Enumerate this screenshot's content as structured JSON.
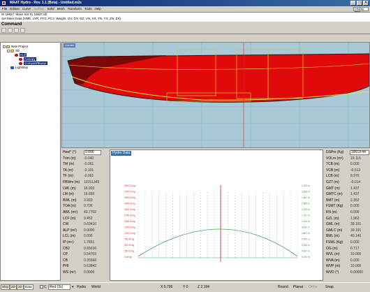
{
  "window": {
    "title": "MAAT Hydro - Rev. 1.1 (Beta) - Untitled.m2s"
  },
  "menu": {
    "items": [
      "File",
      "Edition",
      "Curve",
      "Surface",
      "Solid",
      "Mesh",
      "Transform",
      "Tools",
      "Help"
    ],
    "toolbar_dropdown": "Display Item"
  },
  "command_history": [
    "W 19827: Mass Set To 19827.80",
    "Set Mass Data (HME, LYR, FTG, PC2, Weight, GV, GY, GZ, VN, XX, YN, YX, ZN, ZX)"
  ],
  "command_label": "Command",
  "tree": {
    "root": "New Project",
    "child": "3D",
    "selected_items": [
      "Hull",
      "Canopy",
      "Compart/Bluepr"
    ],
    "lightship": "Lightship"
  },
  "viewport": {
    "label": "Volume"
  },
  "params": {
    "heel": {
      "label": "Heel° (°)",
      "value": "0.000"
    },
    "rows": [
      {
        "label": "Trim (m)",
        "value": "-0.040"
      },
      {
        "label": "TM (m)",
        "value": "-0.061"
      },
      {
        "label": "TA (m)",
        "value": "-0.101"
      },
      {
        "label": "TF (m)",
        "value": "-0.061"
      },
      {
        "label": "FBWm (m)",
        "value": "10151349"
      },
      {
        "label": "LWL (m)",
        "value": "16.933"
      },
      {
        "label": "LM (m)",
        "value": "16.693"
      },
      {
        "label": "BWL (m)",
        "value": "3.933"
      },
      {
        "label": "TOA (m)",
        "value": "0.706"
      },
      {
        "label": "AWL (m²)",
        "value": "43.7702"
      },
      {
        "label": "LCF (m)",
        "value": "9.452"
      },
      {
        "label": "CW",
        "value": "0.69410"
      },
      {
        "label": "ALP (m²)",
        "value": "0.0000"
      },
      {
        "label": "LCL (m)",
        "value": "0.000"
      },
      {
        "label": "IP (m⁴)",
        "value": "1.7851"
      },
      {
        "label": "CB2",
        "value": "0.65016"
      },
      {
        "label": "CP",
        "value": "0.54703"
      },
      {
        "label": "CB",
        "value": "0.35568"
      },
      {
        "label": "PHI",
        "value": "0.63842"
      },
      {
        "label": "WS (m²)",
        "value": "0.0000"
      }
    ]
  },
  "hydro": {
    "label": "Hydro Data",
    "left_scale": [
      "3000.00 kg",
      "2750.00 kg",
      "2500.00 kg",
      "2250.00 kg",
      "2000.00 kg",
      "1750.00 kg",
      "1500.00 kg",
      "1250.00 kg",
      "1000.00 kg",
      "750.00 kg",
      "500.00 kg",
      "250.00 kg",
      "0.00 kg"
    ],
    "right_scale": [
      "2.000 m",
      "1.833 m",
      "1.667 m",
      "1.500 m",
      "1.333 m",
      "1.167 m",
      "1.000 m",
      "0.833 m",
      "0.667 m",
      "0.500 m",
      "0.333 m",
      "0.167 m",
      "0.000 m"
    ],
    "station_count": 24
  },
  "results": {
    "disp": {
      "label": "DSPm (Kg)",
      "value": "19519.44"
    },
    "rows": [
      {
        "label": "VOLm (m³)",
        "value": "19.115"
      },
      {
        "label": "TCB (m)",
        "value": "0.000"
      },
      {
        "label": "VCB (m)",
        "value": "-0.513"
      },
      {
        "label": "LCB (m)",
        "value": "8.976"
      },
      {
        "label": "GZT (m)",
        "value": "-0.014"
      },
      {
        "label": "GMT (m)",
        "value": "1.437"
      },
      {
        "label": "GMTC (m)",
        "value": "1.437"
      },
      {
        "label": "BMT (m)",
        "value": "2.352"
      },
      {
        "label": "FSMT (Kg)",
        "value": "0.000"
      },
      {
        "label": "KN (m)",
        "value": "0.000"
      },
      {
        "label": "GZL (m)",
        "value": "1.962"
      },
      {
        "label": "GML (m)",
        "value": "39.191"
      },
      {
        "label": "GMLC (m)",
        "value": "39.191"
      },
      {
        "label": "BML (m)",
        "value": "40.140"
      },
      {
        "label": "FSML (Kg)",
        "value": "0.000"
      },
      {
        "label": "OG (m)",
        "value": "0.717"
      },
      {
        "label": "WVL (m)",
        "value": "10.000"
      },
      {
        "label": "WVA (m)",
        "value": "0.000"
      },
      {
        "label": "WVP (m)",
        "value": "10.000"
      },
      {
        "label": "WVD (°)",
        "value": "0.00000"
      }
    ]
  },
  "status": {
    "tabs": [
      "Ship",
      "2D",
      "3D",
      "Data"
    ],
    "color_label": "C",
    "color_value": "Red (3s)",
    "mode1": "Hydro",
    "mode2": "World",
    "x": "X 5.796",
    "y": "Y 0",
    "z": "Z 2.194",
    "snaps": [
      "Round",
      "Planar",
      "Ortho",
      "Snap"
    ]
  },
  "colors": {
    "titlebar": "#0a246a",
    "viewport_bg": "#a9c9d6",
    "hull_red": "#e00a0a",
    "grid_green": "#4aa45a",
    "axis_red": "#c00000",
    "selection": "#0a246a"
  }
}
